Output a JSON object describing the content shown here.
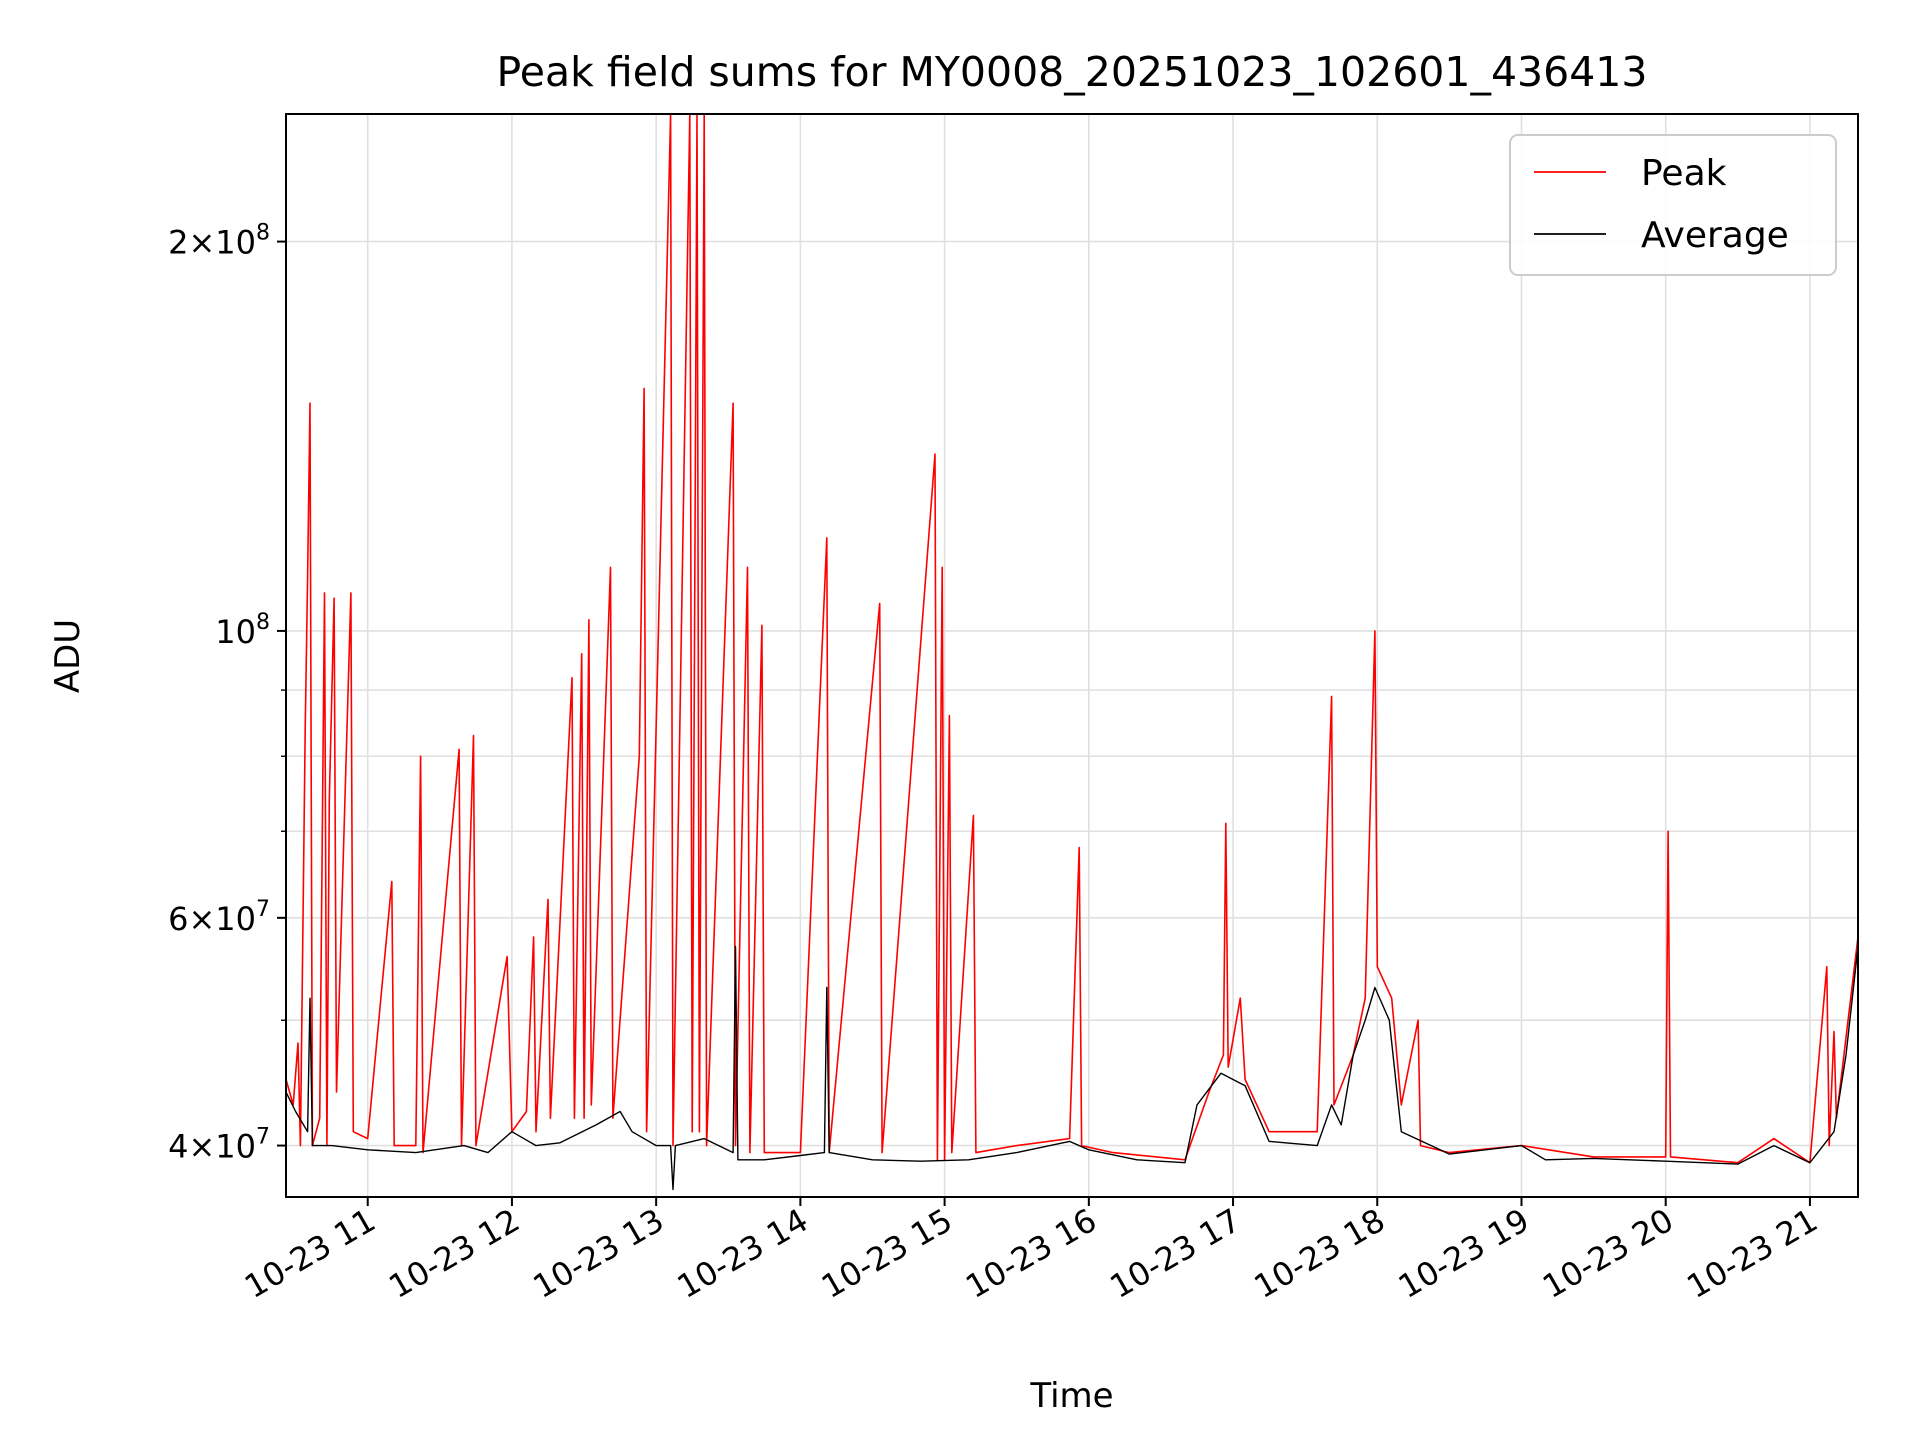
{
  "chart_data": {
    "type": "line",
    "title": "Peak field sums for MY0008_20251023_102601_436413",
    "xlabel": "Time",
    "ylabel": "ADU",
    "yscale": "log",
    "xlim": [
      "2025-10-23 10:26",
      "2025-10-23 21:20"
    ],
    "ylim": [
      36500000,
      251000000
    ],
    "grid": true,
    "legend_position": "top-right",
    "x_ticks": [
      {
        "time": "2025-10-23 11:00",
        "label": "10-23 11"
      },
      {
        "time": "2025-10-23 12:00",
        "label": "10-23 12"
      },
      {
        "time": "2025-10-23 13:00",
        "label": "10-23 13"
      },
      {
        "time": "2025-10-23 14:00",
        "label": "10-23 14"
      },
      {
        "time": "2025-10-23 15:00",
        "label": "10-23 15"
      },
      {
        "time": "2025-10-23 16:00",
        "label": "10-23 16"
      },
      {
        "time": "2025-10-23 17:00",
        "label": "10-23 17"
      },
      {
        "time": "2025-10-23 18:00",
        "label": "10-23 18"
      },
      {
        "time": "2025-10-23 19:00",
        "label": "10-23 19"
      },
      {
        "time": "2025-10-23 20:00",
        "label": "10-23 20"
      },
      {
        "time": "2025-10-23 21:00",
        "label": "10-23 21"
      }
    ],
    "y_major_ticks": [
      {
        "value": 40000000,
        "mantissa": "4",
        "exp": "7"
      },
      {
        "value": 60000000,
        "mantissa": "6",
        "exp": "7"
      },
      {
        "value": 100000000,
        "mantissa": "",
        "exp": "8"
      },
      {
        "value": 200000000,
        "mantissa": "2",
        "exp": "8"
      }
    ],
    "y_minor_ticks": [
      50000000,
      70000000,
      80000000,
      90000000
    ],
    "series": [
      {
        "name": "Peak",
        "color": "#ff0000",
        "points": [
          [
            "2025-10-23 10:26",
            45000000
          ],
          [
            "2025-10-23 10:29",
            43000000
          ],
          [
            "2025-10-23 10:31",
            48000000
          ],
          [
            "2025-10-23 10:32",
            40000000
          ],
          [
            "2025-10-23 10:34",
            84000000
          ],
          [
            "2025-10-23 10:35",
            110000000
          ],
          [
            "2025-10-23 10:36",
            150000000
          ],
          [
            "2025-10-23 10:37",
            40000000
          ],
          [
            "2025-10-23 10:40",
            42000000
          ],
          [
            "2025-10-23 10:42",
            107000000
          ],
          [
            "2025-10-23 10:43",
            40000000
          ],
          [
            "2025-10-23 10:44",
            74000000
          ],
          [
            "2025-10-23 10:46",
            106000000
          ],
          [
            "2025-10-23 10:47",
            44000000
          ],
          [
            "2025-10-23 10:53",
            107000000
          ],
          [
            "2025-10-23 10:54",
            41000000
          ],
          [
            "2025-10-23 11:00",
            40500000
          ],
          [
            "2025-10-23 11:10",
            64000000
          ],
          [
            "2025-10-23 11:11",
            40000000
          ],
          [
            "2025-10-23 11:20",
            40000000
          ],
          [
            "2025-10-23 11:22",
            80000000
          ],
          [
            "2025-10-23 11:23",
            39500000
          ],
          [
            "2025-10-23 11:38",
            81000000
          ],
          [
            "2025-10-23 11:39",
            40000000
          ],
          [
            "2025-10-23 11:44",
            83000000
          ],
          [
            "2025-10-23 11:45",
            40000000
          ],
          [
            "2025-10-23 11:58",
            56000000
          ],
          [
            "2025-10-23 12:00",
            41000000
          ],
          [
            "2025-10-23 12:06",
            42500000
          ],
          [
            "2025-10-23 12:09",
            58000000
          ],
          [
            "2025-10-23 12:10",
            41000000
          ],
          [
            "2025-10-23 12:15",
            62000000
          ],
          [
            "2025-10-23 12:16",
            42000000
          ],
          [
            "2025-10-23 12:25",
            92000000
          ],
          [
            "2025-10-23 12:26",
            42000000
          ],
          [
            "2025-10-23 12:29",
            96000000
          ],
          [
            "2025-10-23 12:30",
            42000000
          ],
          [
            "2025-10-23 12:32",
            102000000
          ],
          [
            "2025-10-23 12:33",
            43000000
          ],
          [
            "2025-10-23 12:41",
            112000000
          ],
          [
            "2025-10-23 12:42",
            42000000
          ],
          [
            "2025-10-23 12:53",
            80000000
          ],
          [
            "2025-10-23 12:55",
            154000000
          ],
          [
            "2025-10-23 12:56",
            41000000
          ],
          [
            "2025-10-23 13:06",
            251000000
          ],
          [
            "2025-10-23 13:07",
            40000000
          ],
          [
            "2025-10-23 13:14",
            251000000
          ],
          [
            "2025-10-23 13:15",
            41000000
          ],
          [
            "2025-10-23 13:17",
            251000000
          ],
          [
            "2025-10-23 13:18",
            41000000
          ],
          [
            "2025-10-23 13:20",
            251000000
          ],
          [
            "2025-10-23 13:21",
            40000000
          ],
          [
            "2025-10-23 13:32",
            150000000
          ],
          [
            "2025-10-23 13:33",
            40000000
          ],
          [
            "2025-10-23 13:38",
            112000000
          ],
          [
            "2025-10-23 13:39",
            39500000
          ],
          [
            "2025-10-23 13:44",
            101000000
          ],
          [
            "2025-10-23 13:45",
            39500000
          ],
          [
            "2025-10-23 14:00",
            39500000
          ],
          [
            "2025-10-23 14:11",
            118000000
          ],
          [
            "2025-10-23 14:12",
            39500000
          ],
          [
            "2025-10-23 14:33",
            105000000
          ],
          [
            "2025-10-23 14:34",
            39500000
          ],
          [
            "2025-10-23 14:56",
            137000000
          ],
          [
            "2025-10-23 14:57",
            39000000
          ],
          [
            "2025-10-23 14:59",
            112000000
          ],
          [
            "2025-10-23 15:00",
            39000000
          ],
          [
            "2025-10-23 15:02",
            86000000
          ],
          [
            "2025-10-23 15:03",
            39500000
          ],
          [
            "2025-10-23 15:12",
            72000000
          ],
          [
            "2025-10-23 15:13",
            39500000
          ],
          [
            "2025-10-23 15:30",
            40000000
          ],
          [
            "2025-10-23 15:52",
            40500000
          ],
          [
            "2025-10-23 15:56",
            68000000
          ],
          [
            "2025-10-23 15:57",
            40000000
          ],
          [
            "2025-10-23 16:10",
            39500000
          ],
          [
            "2025-10-23 16:40",
            39000000
          ],
          [
            "2025-10-23 16:50",
            44000000
          ],
          [
            "2025-10-23 16:56",
            47000000
          ],
          [
            "2025-10-23 16:57",
            71000000
          ],
          [
            "2025-10-23 16:58",
            46000000
          ],
          [
            "2025-10-23 17:03",
            52000000
          ],
          [
            "2025-10-23 17:05",
            45000000
          ],
          [
            "2025-10-23 17:15",
            41000000
          ],
          [
            "2025-10-23 17:35",
            41000000
          ],
          [
            "2025-10-23 17:41",
            89000000
          ],
          [
            "2025-10-23 17:42",
            43000000
          ],
          [
            "2025-10-23 17:50",
            47000000
          ],
          [
            "2025-10-23 17:55",
            52000000
          ],
          [
            "2025-10-23 17:59",
            100000000
          ],
          [
            "2025-10-23 18:00",
            55000000
          ],
          [
            "2025-10-23 18:06",
            52000000
          ],
          [
            "2025-10-23 18:10",
            43000000
          ],
          [
            "2025-10-23 18:17",
            50000000
          ],
          [
            "2025-10-23 18:18",
            40000000
          ],
          [
            "2025-10-23 18:30",
            39500000
          ],
          [
            "2025-10-23 19:00",
            40000000
          ],
          [
            "2025-10-23 19:30",
            39200000
          ],
          [
            "2025-10-23 20:00",
            39200000
          ],
          [
            "2025-10-23 20:01",
            70000000
          ],
          [
            "2025-10-23 20:02",
            39200000
          ],
          [
            "2025-10-23 20:30",
            38800000
          ],
          [
            "2025-10-23 20:45",
            40500000
          ],
          [
            "2025-10-23 21:00",
            38800000
          ],
          [
            "2025-10-23 21:07",
            55000000
          ],
          [
            "2025-10-23 21:08",
            40000000
          ],
          [
            "2025-10-23 21:10",
            49000000
          ],
          [
            "2025-10-23 21:11",
            42000000
          ],
          [
            "2025-10-23 21:20",
            58000000
          ]
        ]
      },
      {
        "name": "Average",
        "color": "#000000",
        "points": [
          [
            "2025-10-23 10:26",
            44000000
          ],
          [
            "2025-10-23 10:30",
            42500000
          ],
          [
            "2025-10-23 10:35",
            41000000
          ],
          [
            "2025-10-23 10:36",
            52000000
          ],
          [
            "2025-10-23 10:37",
            40000000
          ],
          [
            "2025-10-23 10:45",
            40000000
          ],
          [
            "2025-10-23 11:00",
            39700000
          ],
          [
            "2025-10-23 11:20",
            39500000
          ],
          [
            "2025-10-23 11:40",
            40000000
          ],
          [
            "2025-10-23 11:50",
            39500000
          ],
          [
            "2025-10-23 12:00",
            41000000
          ],
          [
            "2025-10-23 12:10",
            40000000
          ],
          [
            "2025-10-23 12:20",
            40200000
          ],
          [
            "2025-10-23 12:35",
            41500000
          ],
          [
            "2025-10-23 12:45",
            42500000
          ],
          [
            "2025-10-23 12:50",
            41000000
          ],
          [
            "2025-10-23 13:00",
            40000000
          ],
          [
            "2025-10-23 13:06",
            40000000
          ],
          [
            "2025-10-23 13:07",
            37000000
          ],
          [
            "2025-10-23 13:08",
            40000000
          ],
          [
            "2025-10-23 13:20",
            40500000
          ],
          [
            "2025-10-23 13:32",
            39500000
          ],
          [
            "2025-10-23 13:33",
            57000000
          ],
          [
            "2025-10-23 13:34",
            39000000
          ],
          [
            "2025-10-23 13:45",
            39000000
          ],
          [
            "2025-10-23 14:00",
            39300000
          ],
          [
            "2025-10-23 14:10",
            39500000
          ],
          [
            "2025-10-23 14:11",
            53000000
          ],
          [
            "2025-10-23 14:12",
            39500000
          ],
          [
            "2025-10-23 14:30",
            39000000
          ],
          [
            "2025-10-23 14:50",
            38900000
          ],
          [
            "2025-10-23 15:10",
            39000000
          ],
          [
            "2025-10-23 15:30",
            39500000
          ],
          [
            "2025-10-23 15:52",
            40300000
          ],
          [
            "2025-10-23 16:00",
            39700000
          ],
          [
            "2025-10-23 16:20",
            39000000
          ],
          [
            "2025-10-23 16:40",
            38800000
          ],
          [
            "2025-10-23 16:45",
            43000000
          ],
          [
            "2025-10-23 16:55",
            45500000
          ],
          [
            "2025-10-23 17:05",
            44500000
          ],
          [
            "2025-10-23 17:15",
            40300000
          ],
          [
            "2025-10-23 17:35",
            40000000
          ],
          [
            "2025-10-23 17:41",
            43000000
          ],
          [
            "2025-10-23 17:45",
            41500000
          ],
          [
            "2025-10-23 17:50",
            47000000
          ],
          [
            "2025-10-23 17:55",
            50000000
          ],
          [
            "2025-10-23 17:59",
            53000000
          ],
          [
            "2025-10-23 18:05",
            50000000
          ],
          [
            "2025-10-23 18:10",
            41000000
          ],
          [
            "2025-10-23 18:30",
            39400000
          ],
          [
            "2025-10-23 19:00",
            40000000
          ],
          [
            "2025-10-23 19:10",
            39000000
          ],
          [
            "2025-10-23 19:30",
            39100000
          ],
          [
            "2025-10-23 20:00",
            38900000
          ],
          [
            "2025-10-23 20:30",
            38700000
          ],
          [
            "2025-10-23 20:45",
            40000000
          ],
          [
            "2025-10-23 21:00",
            38800000
          ],
          [
            "2025-10-23 21:10",
            41000000
          ],
          [
            "2025-10-23 21:15",
            47000000
          ],
          [
            "2025-10-23 21:20",
            57000000
          ]
        ]
      }
    ]
  }
}
